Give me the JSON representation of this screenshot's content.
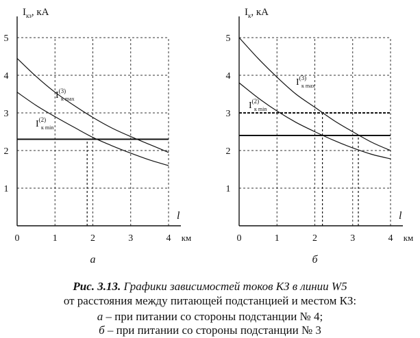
{
  "charts": [
    {
      "panel_label": "а",
      "y_axis_label_main": "I",
      "y_axis_label_sub": "кз",
      "y_axis_label_unit": ", кА",
      "x_axis_label": "l",
      "x_axis_unit": "км",
      "curve_labels": [
        {
          "main": "I",
          "sub": "к max",
          "sup": "(3)"
        },
        {
          "main": "I",
          "sub": "к min",
          "sup": "(2)"
        }
      ]
    },
    {
      "panel_label": "б",
      "y_axis_label_main": "I",
      "y_axis_label_sub": "к",
      "y_axis_label_unit": ", кА",
      "x_axis_label": "l",
      "x_axis_unit": "км",
      "curve_labels": [
        {
          "main": "I",
          "sub": "к max",
          "sup": "(3)"
        },
        {
          "main": "I",
          "sub": "к min",
          "sup": "(2)"
        }
      ]
    }
  ],
  "chart_data": [
    {
      "type": "line",
      "xlim": [
        0,
        4
      ],
      "ylim": [
        0,
        5
      ],
      "x_ticks": [
        0,
        1,
        2,
        3,
        4
      ],
      "y_ticks": [
        1,
        2,
        3,
        4,
        5
      ],
      "grid": true,
      "series": [
        {
          "name": "I к max (3)",
          "style": "solid",
          "x": [
            0,
            0.5,
            1,
            1.5,
            2,
            2.5,
            3,
            3.5,
            4
          ],
          "y": [
            4.45,
            3.97,
            3.55,
            3.2,
            2.88,
            2.6,
            2.37,
            2.16,
            1.95
          ]
        },
        {
          "name": "I к min (2)",
          "style": "solid",
          "x": [
            0,
            0.5,
            1,
            1.5,
            2,
            2.5,
            3,
            3.5,
            4
          ],
          "y": [
            3.55,
            3.2,
            2.9,
            2.62,
            2.35,
            2.13,
            1.93,
            1.75,
            1.6
          ]
        },
        {
          "name": "",
          "style": "solid-thick",
          "x": [
            0,
            4
          ],
          "y": [
            2.3,
            2.3
          ]
        },
        {
          "name": "",
          "style": "dashed",
          "x": [
            1.85,
            1.85
          ],
          "y": [
            0,
            2.3
          ]
        }
      ]
    },
    {
      "type": "line",
      "xlim": [
        0,
        4
      ],
      "ylim": [
        0,
        5
      ],
      "x_ticks": [
        0,
        1,
        2,
        3,
        4
      ],
      "y_ticks": [
        1,
        2,
        3,
        4,
        5
      ],
      "grid": true,
      "series": [
        {
          "name": "I к max (3)",
          "style": "solid",
          "x": [
            0,
            0.5,
            1,
            1.5,
            2,
            2.5,
            3,
            3.5,
            4
          ],
          "y": [
            5.0,
            4.45,
            3.95,
            3.5,
            3.15,
            2.8,
            2.5,
            2.22,
            2.0
          ]
        },
        {
          "name": "I к min (2)",
          "style": "solid",
          "x": [
            0,
            0.5,
            1,
            1.5,
            2,
            2.5,
            3,
            3.5,
            4
          ],
          "y": [
            3.8,
            3.4,
            3.05,
            2.75,
            2.5,
            2.27,
            2.07,
            1.9,
            1.78
          ]
        },
        {
          "name": "",
          "style": "solid-thick",
          "x": [
            0,
            4
          ],
          "y": [
            2.4,
            2.4
          ]
        },
        {
          "name": "",
          "style": "dashed-thick",
          "x": [
            0,
            4
          ],
          "y": [
            3.0,
            3.0
          ]
        },
        {
          "name": "",
          "style": "dashed",
          "x": [
            2.2,
            2.2
          ],
          "y": [
            0,
            3.0
          ]
        },
        {
          "name": "",
          "style": "dashed",
          "x": [
            3.15,
            3.15
          ],
          "y": [
            0,
            2.4
          ]
        }
      ]
    }
  ],
  "caption": {
    "title": "Рис. 3.13.",
    "text1": " Графики зависимостей токов КЗ в линии W5",
    "text2": "от расстояния между питающей подстанцией и местом КЗ:",
    "a_letter": "а",
    "a_text": " – при питании со стороны подстанции № 4;",
    "b_letter": "б",
    "b_text": " – при питании со стороны подстанции № 3"
  }
}
